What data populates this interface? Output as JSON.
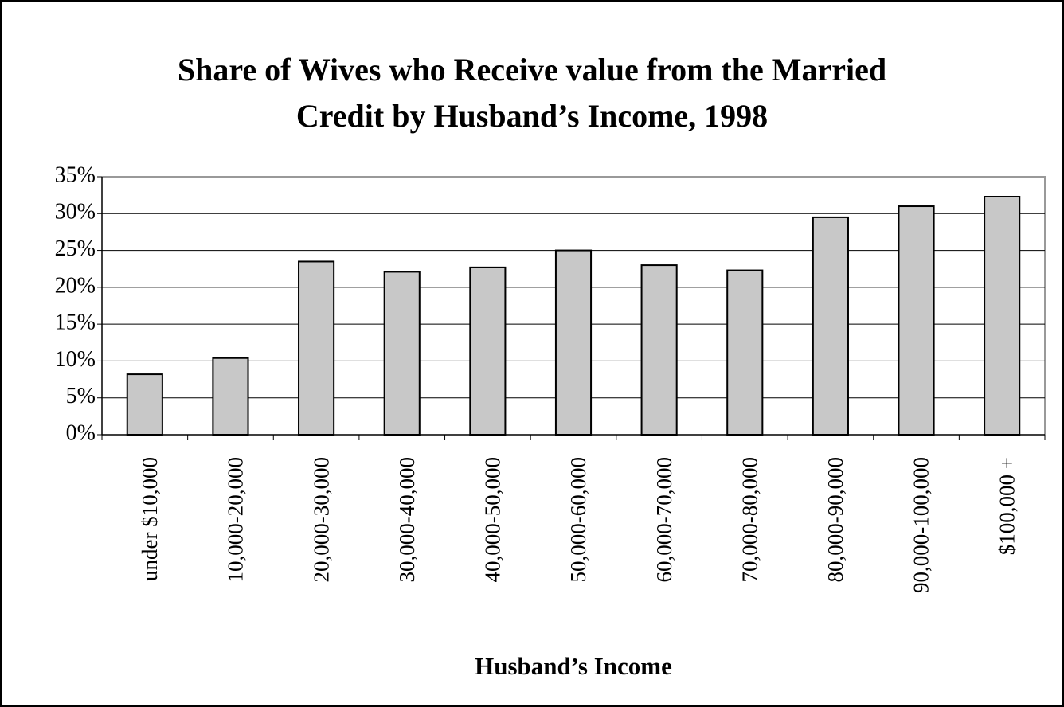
{
  "chart_data": {
    "type": "bar",
    "title": [
      "Share of Wives who Receive value from the Married",
      "Credit by Husband’s Income, 1998"
    ],
    "x_label": "Husband’s Income",
    "categories": [
      "under $10,000",
      "10,000-20,000",
      "20,000-30,000",
      "30,000-40,000",
      "40,000-50,000",
      "50,000-60,000",
      "60,000-70,000",
      "70,000-80,000",
      "80,000-90,000",
      "90,000-100,000",
      "$100,000 +"
    ],
    "values": [
      8.2,
      10.4,
      23.5,
      22.1,
      22.7,
      25.0,
      23.0,
      22.3,
      29.5,
      31.0,
      32.3
    ],
    "color": "#c8c8c8",
    "ylim": [
      0,
      35
    ],
    "yticks": [
      {
        "value": 0,
        "label": "0%"
      },
      {
        "value": 5,
        "label": "5%"
      },
      {
        "value": 10,
        "label": "10%"
      },
      {
        "value": 15,
        "label": "15%"
      },
      {
        "value": 20,
        "label": "20%"
      },
      {
        "value": 25,
        "label": "25%"
      },
      {
        "value": 30,
        "label": "30%"
      },
      {
        "value": 35,
        "label": "35%"
      }
    ],
    "grid": true
  }
}
